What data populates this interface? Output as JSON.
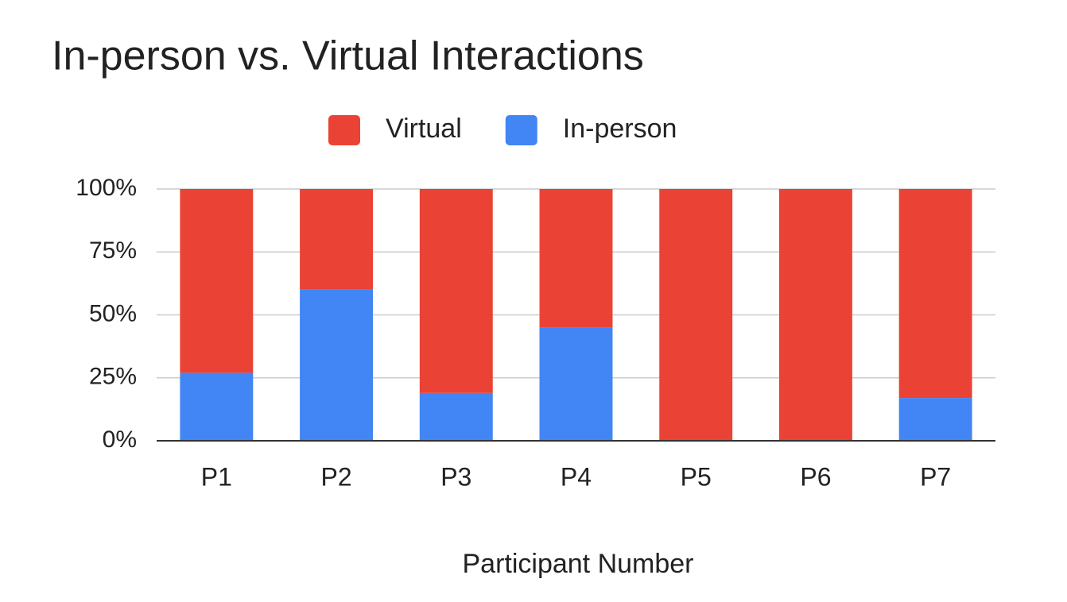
{
  "chart_data": {
    "type": "stacked_bar",
    "title": "In-person vs. Virtual Interactions",
    "x_label": "Participant Number",
    "categories": [
      "P1",
      "P2",
      "P3",
      "P4",
      "P5",
      "P6",
      "P7"
    ],
    "series": [
      {
        "name": "Virtual",
        "color": "#ea4335",
        "values": [
          73,
          40,
          81,
          55,
          100,
          100,
          83
        ]
      },
      {
        "name": "In-person",
        "color": "#4285f4",
        "values": [
          27,
          60,
          19,
          45,
          0,
          0,
          17
        ]
      }
    ],
    "ylim": [
      0,
      100
    ],
    "yticks": [
      {
        "value": 0,
        "label": "0%"
      },
      {
        "value": 25,
        "label": "25%"
      },
      {
        "value": 50,
        "label": "50%"
      },
      {
        "value": 75,
        "label": "75%"
      },
      {
        "value": 100,
        "label": "100%"
      }
    ],
    "grid": true,
    "legend": "top"
  }
}
